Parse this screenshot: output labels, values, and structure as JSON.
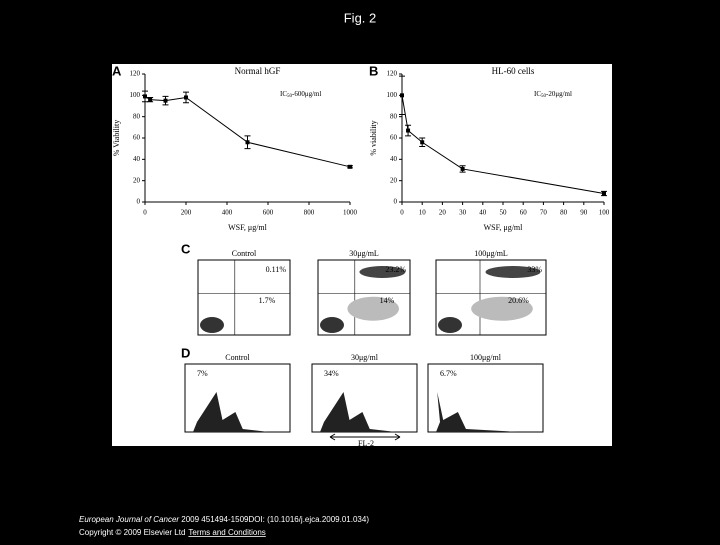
{
  "header": {
    "title": "Fig. 2"
  },
  "chart_data": [
    {
      "type": "line",
      "panel": "A",
      "title": "Normal hGF",
      "annotation": {
        "text": "IC",
        "sub": "50",
        "rest": "-600μg/ml"
      },
      "x_label": "WSF, μg/ml",
      "y_label": "% Viability",
      "x": [
        0,
        25,
        100,
        200,
        500,
        1000
      ],
      "values": [
        99,
        96,
        95,
        98,
        56,
        33
      ],
      "errors": [
        5,
        2,
        4,
        5,
        6,
        1
      ],
      "xlim": [
        0,
        1000
      ],
      "xticks": [
        0,
        200,
        400,
        600,
        800,
        1000
      ],
      "ylim": [
        0,
        120
      ],
      "yticks": [
        0,
        20,
        40,
        60,
        80,
        100,
        120
      ],
      "color": "#000000"
    },
    {
      "type": "line",
      "panel": "B",
      "title": "HL-60 cells",
      "annotation": {
        "text": "IC",
        "sub": "50",
        "rest": "-20μg/ml"
      },
      "x_label": "WSF, μg/ml",
      "y_label": "% viability",
      "x": [
        0,
        3,
        10,
        30,
        100
      ],
      "values": [
        100,
        67,
        56,
        31,
        8
      ],
      "errors": [
        18,
        5,
        4,
        3,
        2
      ],
      "xlim": [
        0,
        100
      ],
      "xticks": [
        0,
        10,
        20,
        30,
        40,
        50,
        60,
        70,
        80,
        90,
        100
      ],
      "ylim": [
        0,
        120
      ],
      "yticks": [
        0,
        20,
        40,
        60,
        80,
        100,
        120
      ],
      "color": "#000000"
    }
  ],
  "panels": {
    "C": {
      "label": "C",
      "plots": [
        {
          "title": "Control",
          "upper": "0.11%",
          "lower": "1.7%"
        },
        {
          "title": "30μg/mL",
          "upper": "23.2%",
          "lower": "14%"
        },
        {
          "title": "100μg/mL",
          "upper": "33%",
          "lower": "20.6%"
        }
      ]
    },
    "D": {
      "label": "D",
      "axis": "FL-2",
      "plots": [
        {
          "title": "Control",
          "fraction": "7%"
        },
        {
          "title": "30μg/ml",
          "fraction": "34%"
        },
        {
          "title": "100μg/ml",
          "fraction": "6.7%"
        }
      ]
    }
  },
  "footer": {
    "journal": "European Journal of Cancer",
    "citation": " 2009 451494-1509DOI: (10.1016/j.ejca.2009.01.034)",
    "copyright": "Copyright © 2009 Elsevier Ltd",
    "link": "Terms and Conditions"
  }
}
